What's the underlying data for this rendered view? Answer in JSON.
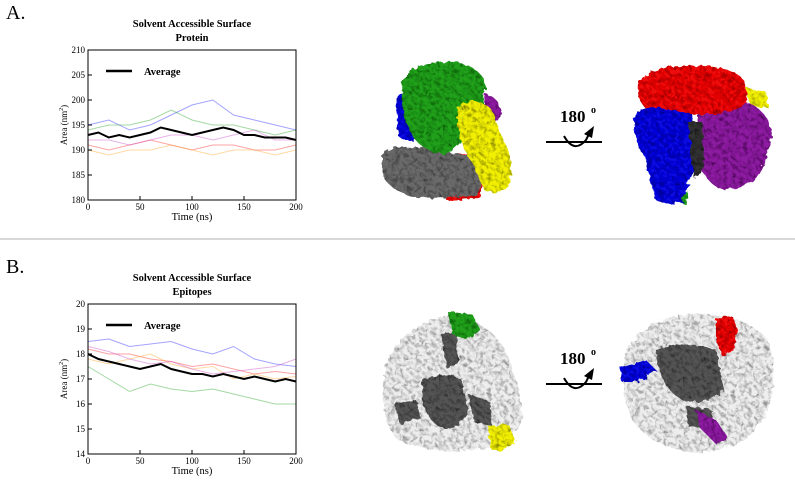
{
  "panels": [
    {
      "letter": "A.",
      "chart_data": {
        "type": "line",
        "title": "Solvent Accessible Surface",
        "subtitle": "Protein",
        "xlabel": "Time (ns)",
        "ylabel_main": "Area (nm",
        "ylabel_sup": "2",
        "ylabel_end": ")",
        "xlim": [
          0,
          200
        ],
        "ylim": [
          180,
          210
        ],
        "xticks": [
          0,
          50,
          100,
          150,
          200
        ],
        "yticks": [
          180,
          185,
          190,
          195,
          200,
          205,
          210
        ],
        "legend": "Average",
        "legend_position": "top-left",
        "series": [
          {
            "name": "Average",
            "color": "#000000",
            "x": [
              0,
              10,
              20,
              30,
              40,
              50,
              60,
              70,
              80,
              90,
              100,
              110,
              120,
              130,
              140,
              150,
              160,
              170,
              180,
              190,
              200
            ],
            "y": [
              193,
              193.5,
              192.5,
              193,
              192.5,
              193,
              193.5,
              194.5,
              194,
              193.5,
              193,
              193.5,
              194,
              194.5,
              194,
              193,
              193,
              192.5,
              192.5,
              192.5,
              192
            ]
          },
          {
            "color": "#3333ff",
            "x": [
              0,
              20,
              40,
              60,
              80,
              100,
              120,
              140,
              160,
              180,
              200
            ],
            "y": [
              195,
              196,
              194,
              195,
              197,
              199,
              200,
              197,
              196,
              195,
              194
            ]
          },
          {
            "color": "#33aa33",
            "x": [
              0,
              20,
              40,
              60,
              80,
              100,
              120,
              140,
              160,
              180,
              200
            ],
            "y": [
              194,
              195,
              195,
              196,
              198,
              196,
              195,
              195,
              194,
              193,
              194
            ]
          },
          {
            "color": "#ff3333",
            "x": [
              0,
              20,
              40,
              60,
              80,
              100,
              120,
              140,
              160,
              180,
              200
            ],
            "y": [
              191,
              190,
              191,
              192,
              191,
              190,
              191,
              191,
              190,
              190,
              191
            ]
          },
          {
            "color": "#ffaa33",
            "x": [
              0,
              20,
              40,
              60,
              80,
              100,
              120,
              140,
              160,
              180,
              200
            ],
            "y": [
              190,
              189,
              190,
              190,
              191,
              190,
              189,
              190,
              190,
              189,
              190
            ]
          },
          {
            "color": "#cc55cc",
            "x": [
              0,
              20,
              40,
              60,
              80,
              100,
              120,
              140,
              160,
              180,
              200
            ],
            "y": [
              192,
              192,
              191,
              192,
              193,
              193,
              192,
              193,
              194,
              192,
              192
            ]
          }
        ]
      },
      "rotation_label": "180",
      "rotation_sup": "o"
    },
    {
      "letter": "B.",
      "chart_data": {
        "type": "line",
        "title": "Solvent Accessible Surface",
        "subtitle": "Epitopes",
        "xlabel": "Time (ns)",
        "ylabel_main": "Area (nm",
        "ylabel_sup": "2",
        "ylabel_end": ")",
        "xlim": [
          0,
          200
        ],
        "ylim": [
          14,
          20
        ],
        "xticks": [
          0,
          50,
          100,
          150,
          200
        ],
        "yticks": [
          14,
          15,
          16,
          17,
          18,
          19,
          20
        ],
        "legend": "Average",
        "legend_position": "top-left",
        "series": [
          {
            "name": "Average",
            "color": "#000000",
            "x": [
              0,
              10,
              20,
              30,
              40,
              50,
              60,
              70,
              80,
              90,
              100,
              110,
              120,
              130,
              140,
              150,
              160,
              170,
              180,
              190,
              200
            ],
            "y": [
              18.0,
              17.8,
              17.7,
              17.6,
              17.5,
              17.4,
              17.5,
              17.6,
              17.4,
              17.3,
              17.2,
              17.2,
              17.1,
              17.2,
              17.1,
              17.0,
              17.1,
              17.0,
              16.9,
              17.0,
              16.9
            ]
          },
          {
            "color": "#3333ff",
            "x": [
              0,
              20,
              40,
              60,
              80,
              100,
              120,
              140,
              160,
              180,
              200
            ],
            "y": [
              18.5,
              18.6,
              18.3,
              18.4,
              18.5,
              18.2,
              18.0,
              18.3,
              17.8,
              17.6,
              17.5
            ]
          },
          {
            "color": "#33aa33",
            "x": [
              0,
              20,
              40,
              60,
              80,
              100,
              120,
              140,
              160,
              180,
              200
            ],
            "y": [
              17.5,
              17.0,
              16.5,
              16.8,
              16.6,
              16.5,
              16.6,
              16.4,
              16.2,
              16.0,
              16.0
            ]
          },
          {
            "color": "#ff3333",
            "x": [
              0,
              20,
              40,
              60,
              80,
              100,
              120,
              140,
              160,
              180,
              200
            ],
            "y": [
              18.2,
              18.0,
              18.0,
              17.8,
              17.7,
              17.5,
              17.6,
              17.4,
              17.2,
              17.3,
              17.2
            ]
          },
          {
            "color": "#ffaa33",
            "x": [
              0,
              20,
              40,
              60,
              80,
              100,
              120,
              140,
              160,
              180,
              200
            ],
            "y": [
              17.8,
              17.6,
              17.8,
              18.0,
              17.6,
              17.4,
              17.5,
              17.0,
              17.2,
              17.0,
              17.1
            ]
          },
          {
            "color": "#cc55cc",
            "x": [
              0,
              20,
              40,
              60,
              80,
              100,
              120,
              140,
              160,
              180,
              200
            ],
            "y": [
              18.3,
              18.1,
              17.8,
              17.6,
              17.7,
              17.4,
              17.2,
              17.3,
              17.4,
              17.5,
              17.8
            ]
          }
        ]
      },
      "rotation_label": "180",
      "rotation_sup": "o"
    }
  ],
  "colors": {
    "chain_green": "#22a01e",
    "chain_yellow": "#f2f000",
    "chain_blue": "#1010e0",
    "chain_red": "#ee1010",
    "chain_purple": "#8c1aa0",
    "chain_gray": "#6a6a6a",
    "epitope_green": "#22a01e",
    "epitope_yellow": "#f2f000",
    "epitope_blue": "#1010e0",
    "epitope_red": "#ee1010",
    "epitope_purple": "#8c1aa0",
    "surface_white": "#eeeeee",
    "surface_dark": "#555555"
  }
}
